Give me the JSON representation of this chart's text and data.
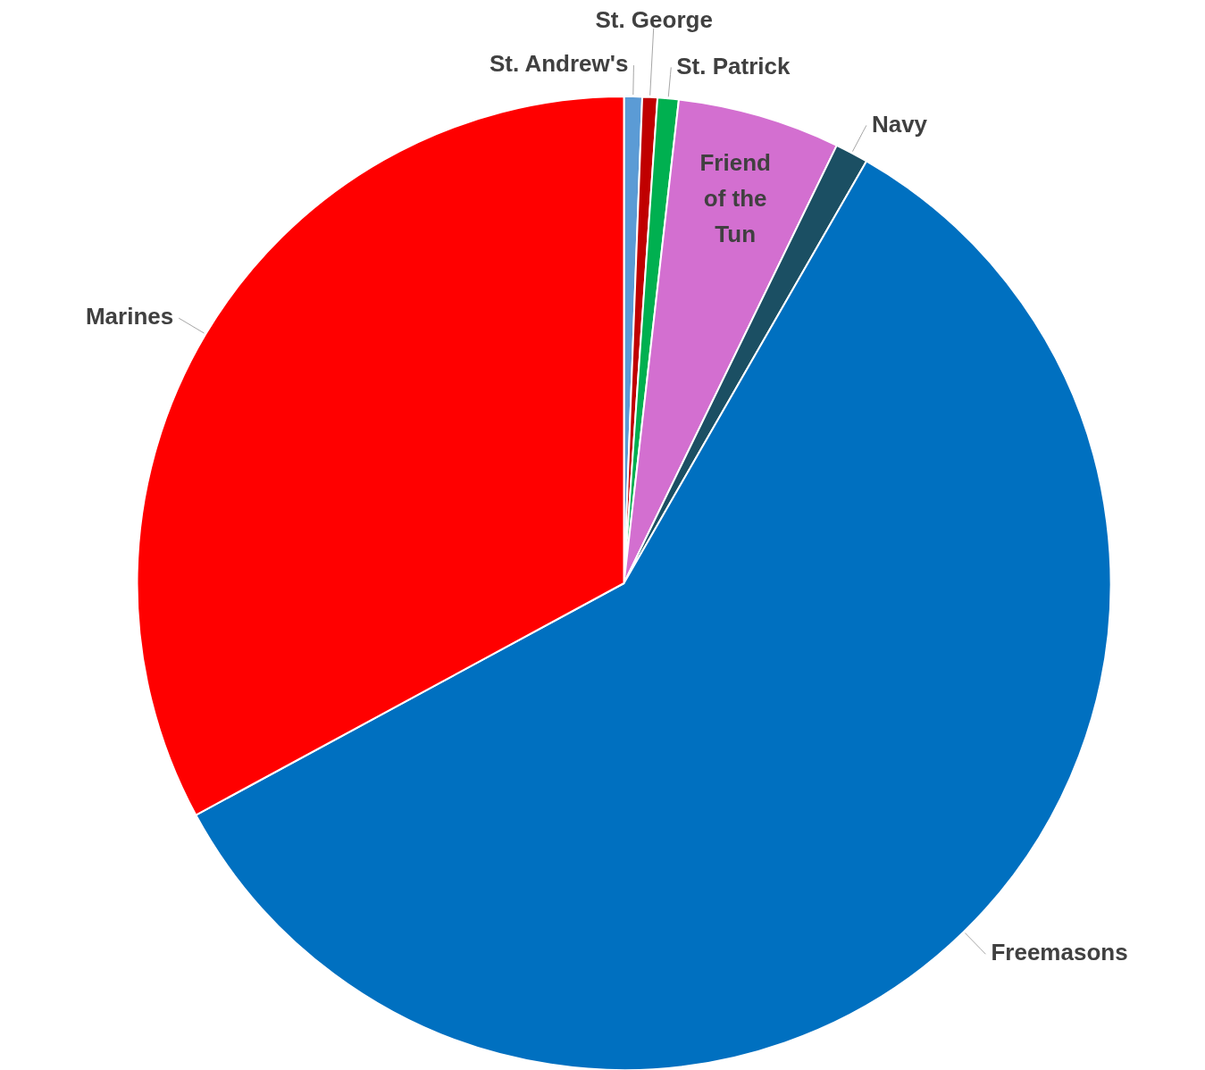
{
  "chart_data": {
    "type": "pie",
    "categories": [
      "St. Andrew's",
      "St. George",
      "St. Patrick",
      "Friend of the Tun",
      "Navy",
      "Freemasons",
      "Marines"
    ],
    "values": [
      0.6,
      0.5,
      0.7,
      5.4,
      1.1,
      58.8,
      32.9
    ],
    "colors": [
      "#5b9bd5",
      "#c00000",
      "#00b050",
      "#d36fd0",
      "#1b4f63",
      "#0070c0",
      "#ff0000"
    ],
    "legend": false
  }
}
